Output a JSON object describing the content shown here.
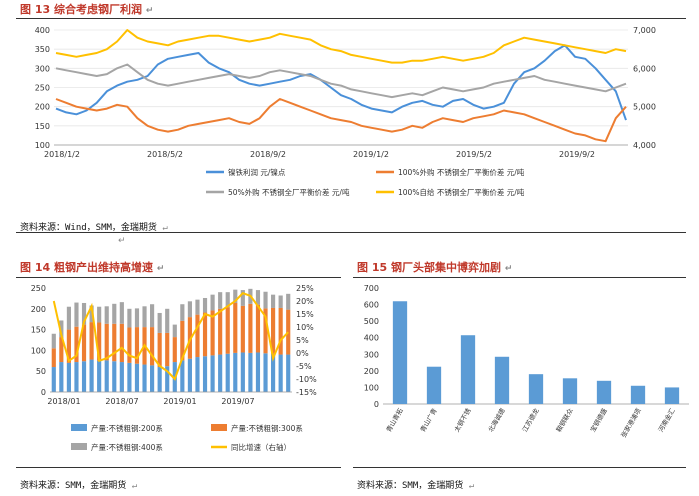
{
  "figures": [
    {
      "number": "图 13",
      "title": "综合考虑钢厂利润",
      "source": "资料来源：Wind，SMM，金瑞期货",
      "chart_data": {
        "type": "line",
        "x_ticks": [
          "2018/1/2",
          "2018/5/2",
          "2018/9/2",
          "2019/1/2",
          "2019/5/2",
          "2019/9/2"
        ],
        "y_left_ticks": [
          "400",
          "350",
          "300",
          "250",
          "200",
          "150",
          "100"
        ],
        "y_right_ticks": [
          "7,000",
          "6,000",
          "5,000",
          "4,000"
        ],
        "ylim_left": [
          100,
          400
        ],
        "ylim_right": [
          4000,
          7000
        ],
        "legend_position": "bottom",
        "series": [
          {
            "name": "镍铁利润 元/镍点",
            "axis": "left",
            "color": "#4a90d9",
            "values": [
              195,
              185,
              180,
              190,
              210,
              240,
              255,
              265,
              270,
              280,
              310,
              325,
              330,
              335,
              340,
              315,
              300,
              290,
              270,
              260,
              255,
              260,
              265,
              270,
              280,
              285,
              270,
              250,
              230,
              220,
              205,
              195,
              190,
              185,
              200,
              210,
              215,
              205,
              200,
              215,
              220,
              205,
              195,
              200,
              210,
              260,
              290,
              300,
              320,
              345,
              360,
              330,
              325,
              300,
              270,
              240,
              165
            ]
          },
          {
            "name": "100%外购 不锈钢全厂平衡价差 元/吨",
            "axis": "right",
            "color": "#ed7d31",
            "values": [
              5200,
              5100,
              5000,
              4950,
              4900,
              4950,
              5050,
              5000,
              4700,
              4500,
              4400,
              4350,
              4400,
              4500,
              4550,
              4600,
              4650,
              4700,
              4600,
              4550,
              4700,
              5000,
              5200,
              5100,
              5000,
              4900,
              4800,
              4700,
              4650,
              4600,
              4500,
              4450,
              4400,
              4350,
              4400,
              4500,
              4450,
              4600,
              4700,
              4650,
              4600,
              4700,
              4750,
              4800,
              4900,
              4850,
              4800,
              4700,
              4600,
              4500,
              4400,
              4300,
              4250,
              4150,
              4100,
              4700,
              5000
            ]
          },
          {
            "name": "50%外购 不锈钢全厂平衡价差 元/吨",
            "axis": "right",
            "color": "#a5a5a5",
            "values": [
              6000,
              5950,
              5900,
              5850,
              5800,
              5850,
              6000,
              6100,
              5900,
              5700,
              5600,
              5550,
              5600,
              5650,
              5700,
              5750,
              5800,
              5850,
              5800,
              5750,
              5800,
              5900,
              5950,
              5900,
              5850,
              5800,
              5700,
              5600,
              5550,
              5450,
              5400,
              5350,
              5300,
              5250,
              5300,
              5350,
              5300,
              5400,
              5500,
              5450,
              5400,
              5450,
              5500,
              5600,
              5650,
              5700,
              5750,
              5800,
              5700,
              5650,
              5600,
              5550,
              5500,
              5450,
              5400,
              5500,
              5600
            ]
          },
          {
            "name": "100%自给 不锈钢全厂平衡价差 元/吨",
            "axis": "right",
            "color": "#ffc000",
            "values": [
              6400,
              6350,
              6300,
              6350,
              6400,
              6500,
              6700,
              7000,
              6800,
              6700,
              6650,
              6600,
              6700,
              6750,
              6800,
              6850,
              6850,
              6800,
              6750,
              6700,
              6750,
              6800,
              6900,
              6850,
              6800,
              6750,
              6600,
              6500,
              6450,
              6350,
              6300,
              6250,
              6200,
              6150,
              6150,
              6200,
              6200,
              6250,
              6300,
              6250,
              6200,
              6250,
              6300,
              6400,
              6600,
              6700,
              6800,
              6750,
              6700,
              6650,
              6600,
              6550,
              6500,
              6450,
              6400,
              6500,
              6450
            ]
          }
        ]
      }
    },
    {
      "number": "图 14",
      "title": "粗钢产出维持高增速",
      "source": "资料来源：SMM，金瑞期货",
      "chart_data": {
        "type": "bar",
        "x_ticks": [
          "2018/01",
          "2018/07",
          "2019/01",
          "2019/07"
        ],
        "y_left_ticks": [
          "250",
          "200",
          "150",
          "100",
          "50",
          "0"
        ],
        "y_right_ticks": [
          "25%",
          "20%",
          "15%",
          "10%",
          "5%",
          "0%",
          "-5%",
          "-10%",
          "-15%"
        ],
        "ylim_left": [
          0,
          250
        ],
        "ylim_right": [
          -15,
          25
        ],
        "legend_position": "bottom",
        "series": [
          {
            "name": "产量:不锈粗钢:200系",
            "type": "bar",
            "color": "#5b9bd5",
            "values": [
              60,
              72,
              70,
              72,
              74,
              78,
              75,
              76,
              74,
              72,
              70,
              68,
              66,
              64,
              60,
              62,
              72,
              76,
              80,
              84,
              86,
              88,
              90,
              92,
              94,
              95,
              94,
              95,
              93,
              92,
              90,
              90
            ]
          },
          {
            "name": "产量:不锈粗钢:300系",
            "type": "bar",
            "color": "#ed7d31",
            "values": [
              45,
              60,
              80,
              85,
              88,
              90,
              92,
              88,
              90,
              92,
              85,
              88,
              90,
              92,
              82,
              80,
              60,
              95,
              100,
              102,
              105,
              108,
              110,
              112,
              120,
              112,
              118,
              115,
              108,
              110,
              112,
              108
            ]
          },
          {
            "name": "产量:不锈粗钢:400系",
            "type": "bar",
            "color": "#a5a5a5",
            "values": [
              35,
              40,
              55,
              58,
              52,
              40,
              38,
              42,
              48,
              52,
              45,
              45,
              50,
              55,
              48,
              58,
              30,
              40,
              38,
              36,
              35,
              38,
              40,
              36,
              32,
              38,
              36,
              35,
              40,
              32,
              30,
              38
            ]
          },
          {
            "name": "同比增速（右轴）",
            "type": "line",
            "axis": "right",
            "color": "#ffc000",
            "values": [
              20,
              7,
              -3,
              -1,
              12,
              18,
              -3,
              -2,
              0,
              2,
              -1,
              -2,
              3,
              -1,
              -5,
              -7,
              -10,
              -2,
              5,
              10,
              15,
              14,
              16,
              18,
              20,
              23,
              22,
              18,
              14,
              -2,
              5,
              8
            ]
          }
        ]
      }
    },
    {
      "number": "图 15",
      "title": "钢厂头部集中博弈加剧",
      "source": "资料来源：SMM，金瑞期货",
      "chart_data": {
        "type": "bar",
        "categories": [
          "青山青拓",
          "青山广青",
          "太钢不锈",
          "北海诚德",
          "江苏德龙",
          "鞍钢联众",
          "宝钢德盛",
          "张家港浦项",
          "河南金汇"
        ],
        "values": [
          620,
          225,
          415,
          285,
          180,
          155,
          140,
          110,
          100
        ],
        "y_ticks": [
          "700",
          "600",
          "500",
          "400",
          "300",
          "200",
          "100",
          "0"
        ],
        "ylim": [
          0,
          700
        ],
        "color": "#5b9bd5"
      }
    }
  ],
  "marks": {
    "return": "↵",
    "return_small": "↵"
  }
}
